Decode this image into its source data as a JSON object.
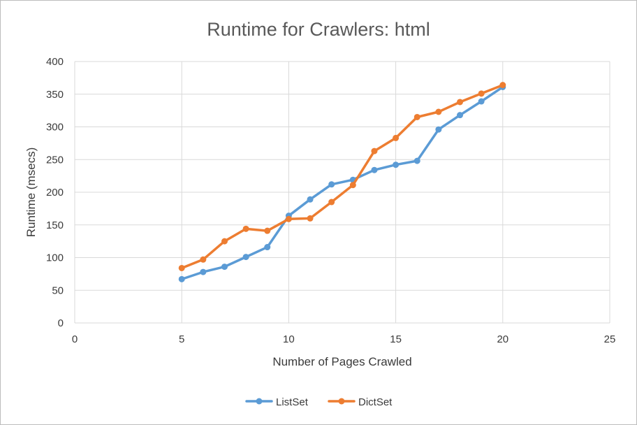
{
  "chart_data": {
    "type": "line",
    "title": "Runtime for Crawlers: html",
    "xlabel": "Number of Pages Crawled",
    "ylabel": "Runtime (msecs)",
    "xlim": [
      0,
      25
    ],
    "ylim": [
      0,
      400
    ],
    "x_ticks": [
      "0",
      "5",
      "10",
      "15",
      "20",
      "25"
    ],
    "y_ticks": [
      "0",
      "50",
      "100",
      "150",
      "200",
      "250",
      "300",
      "350",
      "400"
    ],
    "grid": true,
    "legend_position": "bottom",
    "series": [
      {
        "name": "ListSet",
        "color": "#5b9bd5",
        "x": [
          5,
          6,
          7,
          8,
          9,
          10,
          11,
          12,
          13,
          14,
          15,
          16,
          17,
          18,
          19,
          20
        ],
        "y": [
          67,
          78,
          86,
          101,
          116,
          164,
          189,
          212,
          219,
          234,
          242,
          248,
          296,
          318,
          339,
          361
        ]
      },
      {
        "name": "DictSet",
        "color": "#ed7d31",
        "x": [
          5,
          6,
          7,
          8,
          9,
          10,
          11,
          12,
          13,
          14,
          15,
          16,
          17,
          18,
          19,
          20
        ],
        "y": [
          84,
          97,
          125,
          144,
          141,
          159,
          160,
          185,
          211,
          263,
          283,
          315,
          323,
          338,
          351,
          364
        ]
      }
    ]
  }
}
